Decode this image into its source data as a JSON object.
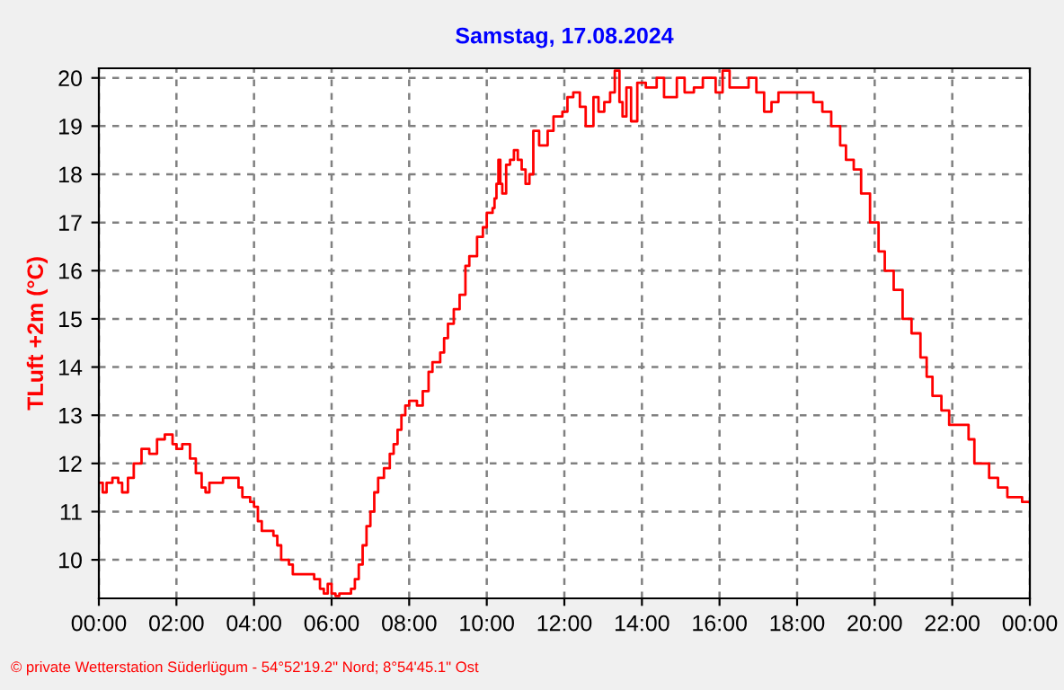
{
  "chart_data": {
    "type": "step",
    "title": "Samstag, 17.08.2024",
    "ylabel": "TLuft +2m (°C)",
    "annotations": [
      "© private Wetterstation Süderlügum - 54°52'19.2\" Nord; 8°54'45.1\" Ost"
    ],
    "x": [
      0,
      0.1,
      0.2,
      0.35,
      0.5,
      0.6,
      0.75,
      0.9,
      1.1,
      1.3,
      1.5,
      1.7,
      1.9,
      2.0,
      2.15,
      2.35,
      2.5,
      2.65,
      2.75,
      2.85,
      3.2,
      3.5,
      3.6,
      3.7,
      3.9,
      4.0,
      4.1,
      4.2,
      4.5,
      4.6,
      4.7,
      4.9,
      5.0,
      5.4,
      5.55,
      5.7,
      5.8,
      5.9,
      6.0,
      6.1,
      6.2,
      6.4,
      6.5,
      6.6,
      6.7,
      6.8,
      6.9,
      7.0,
      7.1,
      7.2,
      7.35,
      7.5,
      7.6,
      7.7,
      7.8,
      7.9,
      8.0,
      8.2,
      8.35,
      8.5,
      8.6,
      8.8,
      8.9,
      9.0,
      9.15,
      9.3,
      9.45,
      9.55,
      9.75,
      9.9,
      10.0,
      10.15,
      10.2,
      10.25,
      10.3,
      10.35,
      10.4,
      10.5,
      10.6,
      10.7,
      10.8,
      10.9,
      11.0,
      11.1,
      11.2,
      11.35,
      11.57,
      11.72,
      11.95,
      12.08,
      12.23,
      12.4,
      12.55,
      12.75,
      12.88,
      13.03,
      13.18,
      13.3,
      13.42,
      13.5,
      13.6,
      13.72,
      13.88,
      14.1,
      14.38,
      14.57,
      14.9,
      15.1,
      15.34,
      15.57,
      15.8,
      15.9,
      16.08,
      16.26,
      16.6,
      16.75,
      16.95,
      17.15,
      17.34,
      17.52,
      17.95,
      18.26,
      18.42,
      18.65,
      18.88,
      19.11,
      19.26,
      19.46,
      19.65,
      19.88,
      20.1,
      20.26,
      20.49,
      20.72,
      20.95,
      21.18,
      21.34,
      21.49,
      21.72,
      21.92,
      22.18,
      22.42,
      22.57,
      22.8,
      22.95,
      23.18,
      23.42,
      23.65,
      23.8,
      23.95
    ],
    "series": [
      {
        "color": "#ff0000",
        "values": [
          11.6,
          11.4,
          11.6,
          11.7,
          11.6,
          11.4,
          11.7,
          12.0,
          12.3,
          12.2,
          12.5,
          12.6,
          12.4,
          12.3,
          12.4,
          12.1,
          11.8,
          11.5,
          11.4,
          11.6,
          11.7,
          11.7,
          11.5,
          11.3,
          11.2,
          11.1,
          10.8,
          10.6,
          10.5,
          10.3,
          10.0,
          9.9,
          9.7,
          9.7,
          9.6,
          9.4,
          9.3,
          9.5,
          9.3,
          9.25,
          9.3,
          9.3,
          9.4,
          9.6,
          9.9,
          10.3,
          10.7,
          11.0,
          11.4,
          11.7,
          11.9,
          12.2,
          12.4,
          12.7,
          13.0,
          13.2,
          13.3,
          13.2,
          13.5,
          13.9,
          14.1,
          14.3,
          14.6,
          14.9,
          15.2,
          15.5,
          16.1,
          16.3,
          16.7,
          16.9,
          17.2,
          17.3,
          17.5,
          17.8,
          18.3,
          17.8,
          17.6,
          18.2,
          18.3,
          18.5,
          18.3,
          18.1,
          17.8,
          18.0,
          18.9,
          18.6,
          18.9,
          19.2,
          19.3,
          19.6,
          19.7,
          19.4,
          19.0,
          19.6,
          19.3,
          19.5,
          19.7,
          20.15,
          19.5,
          19.2,
          19.8,
          19.1,
          19.9,
          19.8,
          20.0,
          19.6,
          20.0,
          19.7,
          19.8,
          20.0,
          20.0,
          19.7,
          20.15,
          19.8,
          19.8,
          20.0,
          19.7,
          19.3,
          19.5,
          19.7,
          19.7,
          19.7,
          19.5,
          19.3,
          19.0,
          18.6,
          18.3,
          18.1,
          17.6,
          17.0,
          16.4,
          16.0,
          15.6,
          15.0,
          14.7,
          14.2,
          13.8,
          13.4,
          13.1,
          12.8,
          12.8,
          12.5,
          12.0,
          12.0,
          11.7,
          11.5,
          11.3,
          11.3,
          11.2,
          11.2
        ]
      }
    ],
    "xlim": [
      0,
      24
    ],
    "ylim": [
      9.2,
      20.2
    ],
    "xticks": [
      {
        "value": 0,
        "label": "00:00"
      },
      {
        "value": 2,
        "label": "02:00"
      },
      {
        "value": 4,
        "label": "04:00"
      },
      {
        "value": 6,
        "label": "06:00"
      },
      {
        "value": 8,
        "label": "08:00"
      },
      {
        "value": 10,
        "label": "10:00"
      },
      {
        "value": 12,
        "label": "12:00"
      },
      {
        "value": 14,
        "label": "14:00"
      },
      {
        "value": 16,
        "label": "16:00"
      },
      {
        "value": 18,
        "label": "18:00"
      },
      {
        "value": 20,
        "label": "20:00"
      },
      {
        "value": 22,
        "label": "22:00"
      },
      {
        "value": 24,
        "label": "00:00"
      }
    ],
    "yticks": [
      10,
      11,
      12,
      13,
      14,
      15,
      16,
      17,
      18,
      19,
      20
    ],
    "grid": true,
    "marker": "none",
    "line_style": "solid"
  }
}
